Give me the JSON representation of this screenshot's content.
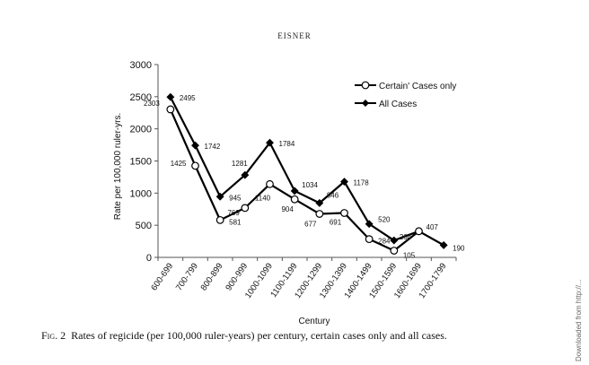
{
  "header": {
    "running_head": "EISNER"
  },
  "caption": {
    "figure_label": "Fig. 2",
    "text": "Rates of regicide (per 100,000 ruler-years) per century, certain cases only and all cases."
  },
  "sidebar": {
    "text": "Downloaded from http://..."
  },
  "chart_data": {
    "type": "line",
    "title": "",
    "xlabel": "Century",
    "ylabel": "Rate per 100,000 ruler-yrs.",
    "categories": [
      "600-699",
      "700-799",
      "800-899",
      "900-999",
      "1000-1099",
      "1100-1199",
      "1200-1299",
      "1300-1399",
      "1400-1499",
      "1500-1599",
      "1600-1699",
      "1700-1799"
    ],
    "ylim": [
      0,
      3000
    ],
    "yticks": [
      0,
      500,
      1000,
      1500,
      2000,
      2500,
      3000
    ],
    "grid": false,
    "legend_position": "top-right",
    "series": [
      {
        "name": "Certain' Cases only",
        "marker": "open-circle",
        "color": "#000000",
        "values": [
          2303,
          1425,
          581,
          769,
          1140,
          904,
          677,
          691,
          284,
          105,
          407,
          null
        ],
        "labels": [
          "2303",
          "1425",
          "581",
          "769",
          "1140",
          "904",
          "677",
          "691",
          "284",
          "105",
          "",
          ""
        ]
      },
      {
        "name": "All Cases",
        "marker": "filled-diamond",
        "color": "#000000",
        "values": [
          2495,
          1742,
          945,
          1281,
          1784,
          1034,
          846,
          1178,
          520,
          264,
          407,
          190
        ],
        "labels": [
          "2495",
          "1742",
          "945",
          "1281",
          "1784",
          "1034",
          "846",
          "1178",
          "520",
          "264",
          "407",
          "190"
        ]
      }
    ]
  }
}
